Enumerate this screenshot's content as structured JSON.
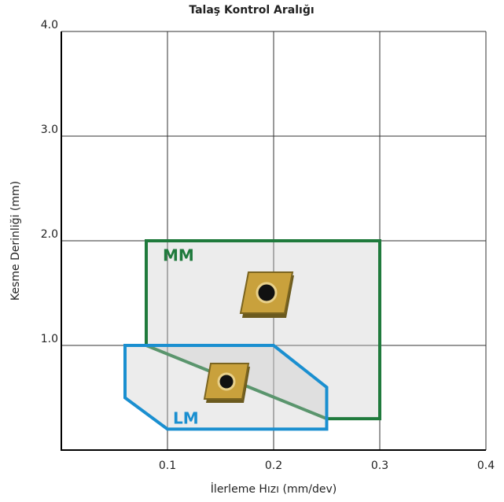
{
  "chart_data": {
    "type": "polygon",
    "title": "Talaş Kontrol Aralığı",
    "xlabel": "İlerleme Hızı (mm/dev)",
    "ylabel": "Kesme Derinliği (mm)",
    "xlim": [
      0,
      0.4
    ],
    "ylim": [
      0,
      4
    ],
    "xticks": [
      0.1,
      0.2,
      0.3,
      0.4
    ],
    "yticks": [
      {
        "value": 1,
        "label": "1.0"
      },
      {
        "value": 2,
        "label": "2.0"
      },
      {
        "value": 3,
        "label": "3.0"
      },
      {
        "value": 4,
        "label": "4.0"
      }
    ],
    "grid": true,
    "series": [
      {
        "name": "MM",
        "color": "#1f7a3c",
        "x": [
          0.08,
          0.3,
          0.3,
          0.25,
          0.08
        ],
        "y": [
          2.0,
          2.0,
          0.3,
          0.3,
          1.0
        ]
      },
      {
        "name": "LM",
        "color": "#1a8fd0",
        "x": [
          0.06,
          0.2,
          0.25,
          0.25,
          0.1,
          0.06
        ],
        "y": [
          1.0,
          1.0,
          0.6,
          0.2,
          0.2,
          0.5
        ]
      }
    ]
  }
}
